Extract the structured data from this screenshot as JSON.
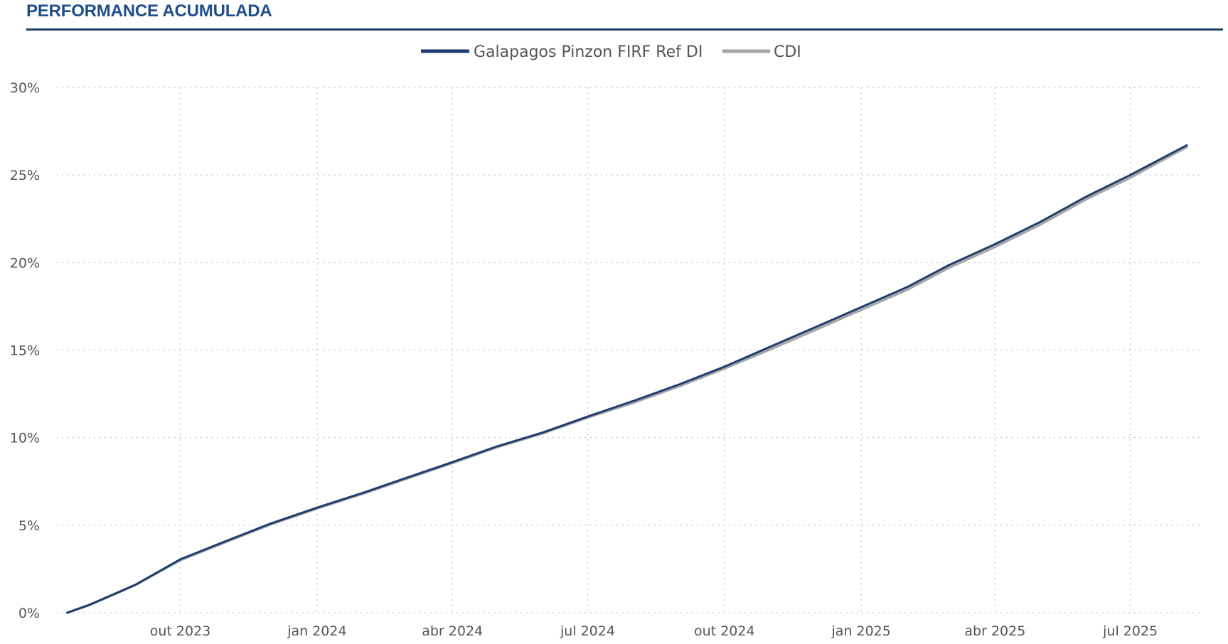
{
  "header": {
    "title": "PERFORMANCE ACUMULADA"
  },
  "colors": {
    "fund": "#1f3d70",
    "cdi": "#a6a6a6",
    "grid": "#bfbfbf",
    "title": "#1f4e8c"
  },
  "chart_data": {
    "type": "line",
    "title": "PERFORMANCE ACUMULADA",
    "xlabel": "",
    "ylabel": "",
    "legend_position": "top-center",
    "grid": true,
    "x_axis": {
      "min": "2023-07-10",
      "max": "2025-08-18",
      "ticks": [
        {
          "date": "2023-10-01",
          "label": "out 2023"
        },
        {
          "date": "2024-01-01",
          "label": "jan 2024"
        },
        {
          "date": "2024-04-01",
          "label": "abr 2024"
        },
        {
          "date": "2024-07-01",
          "label": "jul 2024"
        },
        {
          "date": "2024-10-01",
          "label": "out 2024"
        },
        {
          "date": "2025-01-01",
          "label": "jan 2025"
        },
        {
          "date": "2025-04-01",
          "label": "abr 2025"
        },
        {
          "date": "2025-07-01",
          "label": "jul 2025"
        }
      ]
    },
    "y_axis": {
      "min": 0,
      "max": 30,
      "ticks": [
        {
          "value": 0,
          "label": "0%"
        },
        {
          "value": 5,
          "label": "5%"
        },
        {
          "value": 10,
          "label": "10%"
        },
        {
          "value": 15,
          "label": "15%"
        },
        {
          "value": 20,
          "label": "20%"
        },
        {
          "value": 25,
          "label": "25%"
        },
        {
          "value": 30,
          "label": "30%"
        }
      ]
    },
    "series": [
      {
        "name": "Galapagos Pinzon FIRF Ref DI",
        "color": "#1f3d70",
        "points": [
          [
            "2023-07-17",
            0.0
          ],
          [
            "2023-08-01",
            0.45
          ],
          [
            "2023-09-01",
            1.6
          ],
          [
            "2023-10-01",
            3.05
          ],
          [
            "2023-11-01",
            4.1
          ],
          [
            "2023-12-01",
            5.1
          ],
          [
            "2024-01-01",
            6.0
          ],
          [
            "2024-02-01",
            6.85
          ],
          [
            "2024-03-01",
            7.7
          ],
          [
            "2024-04-01",
            8.6
          ],
          [
            "2024-05-01",
            9.5
          ],
          [
            "2024-06-01",
            10.3
          ],
          [
            "2024-07-01",
            11.2
          ],
          [
            "2024-08-01",
            12.1
          ],
          [
            "2024-09-01",
            13.05
          ],
          [
            "2024-10-01",
            14.05
          ],
          [
            "2024-11-01",
            15.2
          ],
          [
            "2024-12-01",
            16.3
          ],
          [
            "2025-01-01",
            17.45
          ],
          [
            "2025-02-01",
            18.6
          ],
          [
            "2025-03-01",
            19.85
          ],
          [
            "2025-04-01",
            21.05
          ],
          [
            "2025-05-01",
            22.3
          ],
          [
            "2025-06-01",
            23.75
          ],
          [
            "2025-07-01",
            25.0
          ],
          [
            "2025-08-08",
            26.7
          ]
        ]
      },
      {
        "name": "CDI",
        "color": "#a6a6a6",
        "points": [
          [
            "2023-07-17",
            0.0
          ],
          [
            "2023-08-01",
            0.45
          ],
          [
            "2023-09-01",
            1.6
          ],
          [
            "2023-10-01",
            3.0
          ],
          [
            "2023-11-01",
            4.05
          ],
          [
            "2023-12-01",
            5.05
          ],
          [
            "2024-01-01",
            5.95
          ],
          [
            "2024-02-01",
            6.8
          ],
          [
            "2024-03-01",
            7.65
          ],
          [
            "2024-04-01",
            8.55
          ],
          [
            "2024-05-01",
            9.45
          ],
          [
            "2024-06-01",
            10.25
          ],
          [
            "2024-07-01",
            11.15
          ],
          [
            "2024-08-01",
            12.0
          ],
          [
            "2024-09-01",
            12.95
          ],
          [
            "2024-10-01",
            13.95
          ],
          [
            "2024-11-01",
            15.05
          ],
          [
            "2024-12-01",
            16.15
          ],
          [
            "2025-01-01",
            17.3
          ],
          [
            "2025-02-01",
            18.45
          ],
          [
            "2025-03-01",
            19.7
          ],
          [
            "2025-04-01",
            20.9
          ],
          [
            "2025-05-01",
            22.15
          ],
          [
            "2025-06-01",
            23.6
          ],
          [
            "2025-07-01",
            24.85
          ],
          [
            "2025-08-08",
            26.6
          ]
        ]
      }
    ]
  }
}
